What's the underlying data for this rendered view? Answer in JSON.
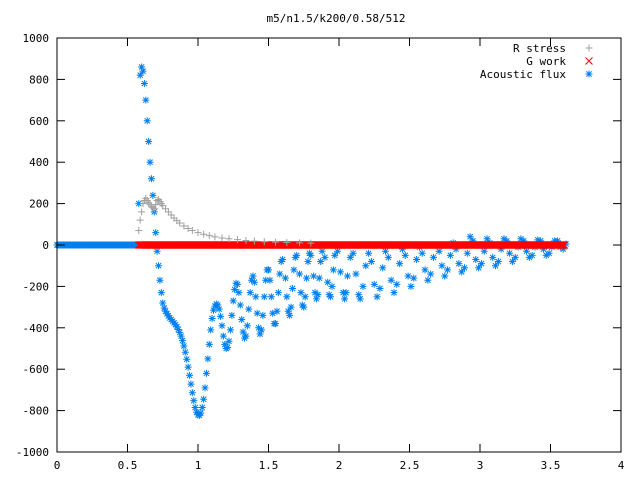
{
  "chart_data": {
    "type": "scatter",
    "title": "m5/n1.5/k200/0.58/512",
    "xlabel": "",
    "ylabel": "",
    "xlim": [
      0,
      4
    ],
    "ylim": [
      -1000,
      1000
    ],
    "x_ticks": [
      "0",
      "0.5",
      "1",
      "1.5",
      "2",
      "2.5",
      "3",
      "3.5",
      "4"
    ],
    "y_ticks": [
      "1000",
      "800",
      "600",
      "400",
      "200",
      "0",
      "-200",
      "-400",
      "-600",
      "-800",
      "-1000"
    ],
    "grid": false,
    "legend_position": "top-right",
    "series": [
      {
        "name": "R stress",
        "marker": "plus",
        "color": "#a0a0a0",
        "points": [
          [
            0.58,
            70
          ],
          [
            0.59,
            120
          ],
          [
            0.6,
            160
          ],
          [
            0.61,
            200
          ],
          [
            0.62,
            215
          ],
          [
            0.63,
            225
          ],
          [
            0.64,
            215
          ],
          [
            0.65,
            205
          ],
          [
            0.66,
            195
          ],
          [
            0.67,
            185
          ],
          [
            0.68,
            180
          ],
          [
            0.69,
            175
          ],
          [
            0.7,
            195
          ],
          [
            0.71,
            215
          ],
          [
            0.72,
            220
          ],
          [
            0.73,
            210
          ],
          [
            0.74,
            200
          ],
          [
            0.75,
            190
          ],
          [
            0.77,
            175
          ],
          [
            0.79,
            160
          ],
          [
            0.81,
            145
          ],
          [
            0.83,
            130
          ],
          [
            0.85,
            118
          ],
          [
            0.87,
            106
          ],
          [
            0.9,
            92
          ],
          [
            0.93,
            80
          ],
          [
            0.96,
            70
          ],
          [
            1.0,
            60
          ],
          [
            1.04,
            52
          ],
          [
            1.08,
            45
          ],
          [
            1.12,
            39
          ],
          [
            1.17,
            34
          ],
          [
            1.22,
            30
          ],
          [
            1.28,
            26
          ],
          [
            1.34,
            22
          ],
          [
            1.4,
            19
          ],
          [
            1.47,
            16
          ],
          [
            1.55,
            14
          ],
          [
            1.63,
            12
          ],
          [
            1.72,
            10
          ],
          [
            1.8,
            9
          ]
        ]
      },
      {
        "name": "G work",
        "marker": "cross",
        "color": "#ff0000",
        "x_start": 0.58,
        "x_end": 3.6,
        "step": 0.006,
        "value": 0
      },
      {
        "name": "Acoustic flux",
        "marker": "star",
        "color": "#0080f0",
        "baseline_x_start": 0.0,
        "baseline_x_end": 0.58,
        "baseline_step": 0.006,
        "baseline_value": 0,
        "points": [
          [
            0.58,
            200
          ],
          [
            0.59,
            820
          ],
          [
            0.6,
            860
          ],
          [
            0.61,
            840
          ],
          [
            0.62,
            780
          ],
          [
            0.63,
            700
          ],
          [
            0.64,
            600
          ],
          [
            0.65,
            500
          ],
          [
            0.66,
            400
          ],
          [
            0.67,
            320
          ],
          [
            0.68,
            240
          ],
          [
            0.69,
            160
          ],
          [
            0.7,
            60
          ],
          [
            0.71,
            -30
          ],
          [
            0.72,
            -100
          ],
          [
            0.73,
            -170
          ],
          [
            0.74,
            -230
          ],
          [
            0.75,
            -280
          ],
          [
            0.76,
            -305
          ],
          [
            0.77,
            -320
          ],
          [
            0.78,
            -332
          ],
          [
            0.79,
            -342
          ],
          [
            0.8,
            -352
          ],
          [
            0.81,
            -360
          ],
          [
            0.82,
            -368
          ],
          [
            0.83,
            -376
          ],
          [
            0.84,
            -385
          ],
          [
            0.85,
            -395
          ],
          [
            0.86,
            -408
          ],
          [
            0.87,
            -422
          ],
          [
            0.88,
            -440
          ],
          [
            0.89,
            -462
          ],
          [
            0.9,
            -488
          ],
          [
            0.91,
            -518
          ],
          [
            0.92,
            -552
          ],
          [
            0.93,
            -590
          ],
          [
            0.94,
            -630
          ],
          [
            0.95,
            -672
          ],
          [
            0.96,
            -714
          ],
          [
            0.97,
            -752
          ],
          [
            0.98,
            -785
          ],
          [
            0.99,
            -808
          ],
          [
            1.0,
            -820
          ],
          [
            1.01,
            -823
          ],
          [
            1.02,
            -812
          ],
          [
            1.03,
            -785
          ],
          [
            1.04,
            -745
          ],
          [
            1.05,
            -690
          ],
          [
            1.06,
            -620
          ],
          [
            1.07,
            -550
          ],
          [
            1.08,
            -480
          ],
          [
            1.09,
            -410
          ],
          [
            1.1,
            -355
          ],
          [
            1.11,
            -315
          ],
          [
            1.12,
            -295
          ],
          [
            1.13,
            -285
          ],
          [
            1.14,
            -290
          ],
          [
            1.15,
            -310
          ],
          [
            1.16,
            -345
          ],
          [
            1.17,
            -390
          ],
          [
            1.18,
            -440
          ],
          [
            1.19,
            -480
          ],
          [
            1.2,
            -500
          ],
          [
            1.21,
            -495
          ],
          [
            1.22,
            -465
          ],
          [
            1.23,
            -410
          ],
          [
            1.24,
            -340
          ],
          [
            1.25,
            -270
          ],
          [
            1.26,
            -215
          ],
          [
            1.27,
            -185
          ],
          [
            1.28,
            -190
          ],
          [
            1.29,
            -230
          ],
          [
            1.3,
            -290
          ],
          [
            1.31,
            -360
          ],
          [
            1.32,
            -420
          ],
          [
            1.33,
            -450
          ],
          [
            1.34,
            -440
          ],
          [
            1.35,
            -390
          ],
          [
            1.36,
            -310
          ],
          [
            1.37,
            -230
          ],
          [
            1.38,
            -170
          ],
          [
            1.39,
            -150
          ],
          [
            1.4,
            -180
          ],
          [
            1.41,
            -250
          ],
          [
            1.42,
            -330
          ],
          [
            1.43,
            -400
          ],
          [
            1.44,
            -430
          ],
          [
            1.45,
            -410
          ],
          [
            1.46,
            -340
          ],
          [
            1.47,
            -250
          ],
          [
            1.48,
            -170
          ],
          [
            1.49,
            -120
          ],
          [
            1.5,
            -120
          ],
          [
            1.51,
            -170
          ],
          [
            1.52,
            -250
          ],
          [
            1.53,
            -330
          ],
          [
            1.54,
            -380
          ],
          [
            1.55,
            -380
          ],
          [
            1.56,
            -320
          ],
          [
            1.57,
            -230
          ],
          [
            1.58,
            -140
          ],
          [
            1.59,
            -80
          ],
          [
            1.6,
            -70
          ],
          [
            1.62,
            -160
          ],
          [
            1.63,
            -250
          ],
          [
            1.64,
            -320
          ],
          [
            1.65,
            -340
          ],
          [
            1.66,
            -300
          ],
          [
            1.67,
            -210
          ],
          [
            1.68,
            -120
          ],
          [
            1.69,
            -60
          ],
          [
            1.7,
            -50
          ],
          [
            1.72,
            -140
          ],
          [
            1.73,
            -230
          ],
          [
            1.74,
            -290
          ],
          [
            1.75,
            -300
          ],
          [
            1.76,
            -250
          ],
          [
            1.77,
            -160
          ],
          [
            1.78,
            -80
          ],
          [
            1.79,
            -40
          ],
          [
            1.8,
            -50
          ],
          [
            1.82,
            -150
          ],
          [
            1.83,
            -230
          ],
          [
            1.84,
            -260
          ],
          [
            1.85,
            -240
          ],
          [
            1.86,
            -160
          ],
          [
            1.87,
            -80
          ],
          [
            1.88,
            -30
          ],
          [
            1.9,
            -60
          ],
          [
            1.92,
            -180
          ],
          [
            1.93,
            -240
          ],
          [
            1.94,
            -250
          ],
          [
            1.95,
            -200
          ],
          [
            1.96,
            -120
          ],
          [
            1.97,
            -50
          ],
          [
            1.99,
            -30
          ],
          [
            2.01,
            -130
          ],
          [
            2.03,
            -230
          ],
          [
            2.04,
            -260
          ],
          [
            2.05,
            -230
          ],
          [
            2.06,
            -150
          ],
          [
            2.08,
            -60
          ],
          [
            2.1,
            -40
          ],
          [
            2.12,
            -140
          ],
          [
            2.14,
            -240
          ],
          [
            2.15,
            -260
          ],
          [
            2.17,
            -200
          ],
          [
            2.19,
            -100
          ],
          [
            2.21,
            -40
          ],
          [
            2.23,
            -80
          ],
          [
            2.25,
            -190
          ],
          [
            2.27,
            -250
          ],
          [
            2.29,
            -210
          ],
          [
            2.31,
            -110
          ],
          [
            2.33,
            -30
          ],
          [
            2.35,
            -60
          ],
          [
            2.37,
            -170
          ],
          [
            2.39,
            -230
          ],
          [
            2.41,
            -190
          ],
          [
            2.43,
            -90
          ],
          [
            2.45,
            -20
          ],
          [
            2.47,
            -50
          ],
          [
            2.49,
            -150
          ],
          [
            2.51,
            -200
          ],
          [
            2.53,
            -160
          ],
          [
            2.55,
            -70
          ],
          [
            2.57,
            -10
          ],
          [
            2.59,
            -40
          ],
          [
            2.61,
            -120
          ],
          [
            2.63,
            -170
          ],
          [
            2.65,
            -140
          ],
          [
            2.67,
            -60
          ],
          [
            2.69,
            0
          ],
          [
            2.71,
            -30
          ],
          [
            2.73,
            -100
          ],
          [
            2.75,
            -150
          ],
          [
            2.77,
            -120
          ],
          [
            2.79,
            -50
          ],
          [
            2.81,
            10
          ],
          [
            2.83,
            -20
          ],
          [
            2.85,
            -90
          ],
          [
            2.87,
            -130
          ],
          [
            2.89,
            -110
          ],
          [
            2.91,
            -40
          ],
          [
            2.93,
            40
          ],
          [
            2.95,
            20
          ],
          [
            2.97,
            -70
          ],
          [
            2.99,
            -110
          ],
          [
            3.01,
            -90
          ],
          [
            3.03,
            -30
          ],
          [
            3.05,
            30
          ],
          [
            3.07,
            10
          ],
          [
            3.09,
            -60
          ],
          [
            3.11,
            -100
          ],
          [
            3.13,
            -80
          ],
          [
            3.15,
            -20
          ],
          [
            3.17,
            30
          ],
          [
            3.19,
            20
          ],
          [
            3.21,
            -40
          ],
          [
            3.23,
            -80
          ],
          [
            3.25,
            -60
          ],
          [
            3.27,
            -10
          ],
          [
            3.29,
            30
          ],
          [
            3.31,
            20
          ],
          [
            3.33,
            -30
          ],
          [
            3.35,
            -60
          ],
          [
            3.37,
            -50
          ],
          [
            3.39,
            -10
          ],
          [
            3.41,
            25
          ],
          [
            3.43,
            20
          ],
          [
            3.45,
            -20
          ],
          [
            3.47,
            -50
          ],
          [
            3.49,
            -40
          ],
          [
            3.51,
            -10
          ],
          [
            3.53,
            20
          ],
          [
            3.55,
            20
          ],
          [
            3.57,
            -10
          ],
          [
            3.59,
            -20
          ],
          [
            3.61,
            5
          ]
        ]
      }
    ]
  }
}
